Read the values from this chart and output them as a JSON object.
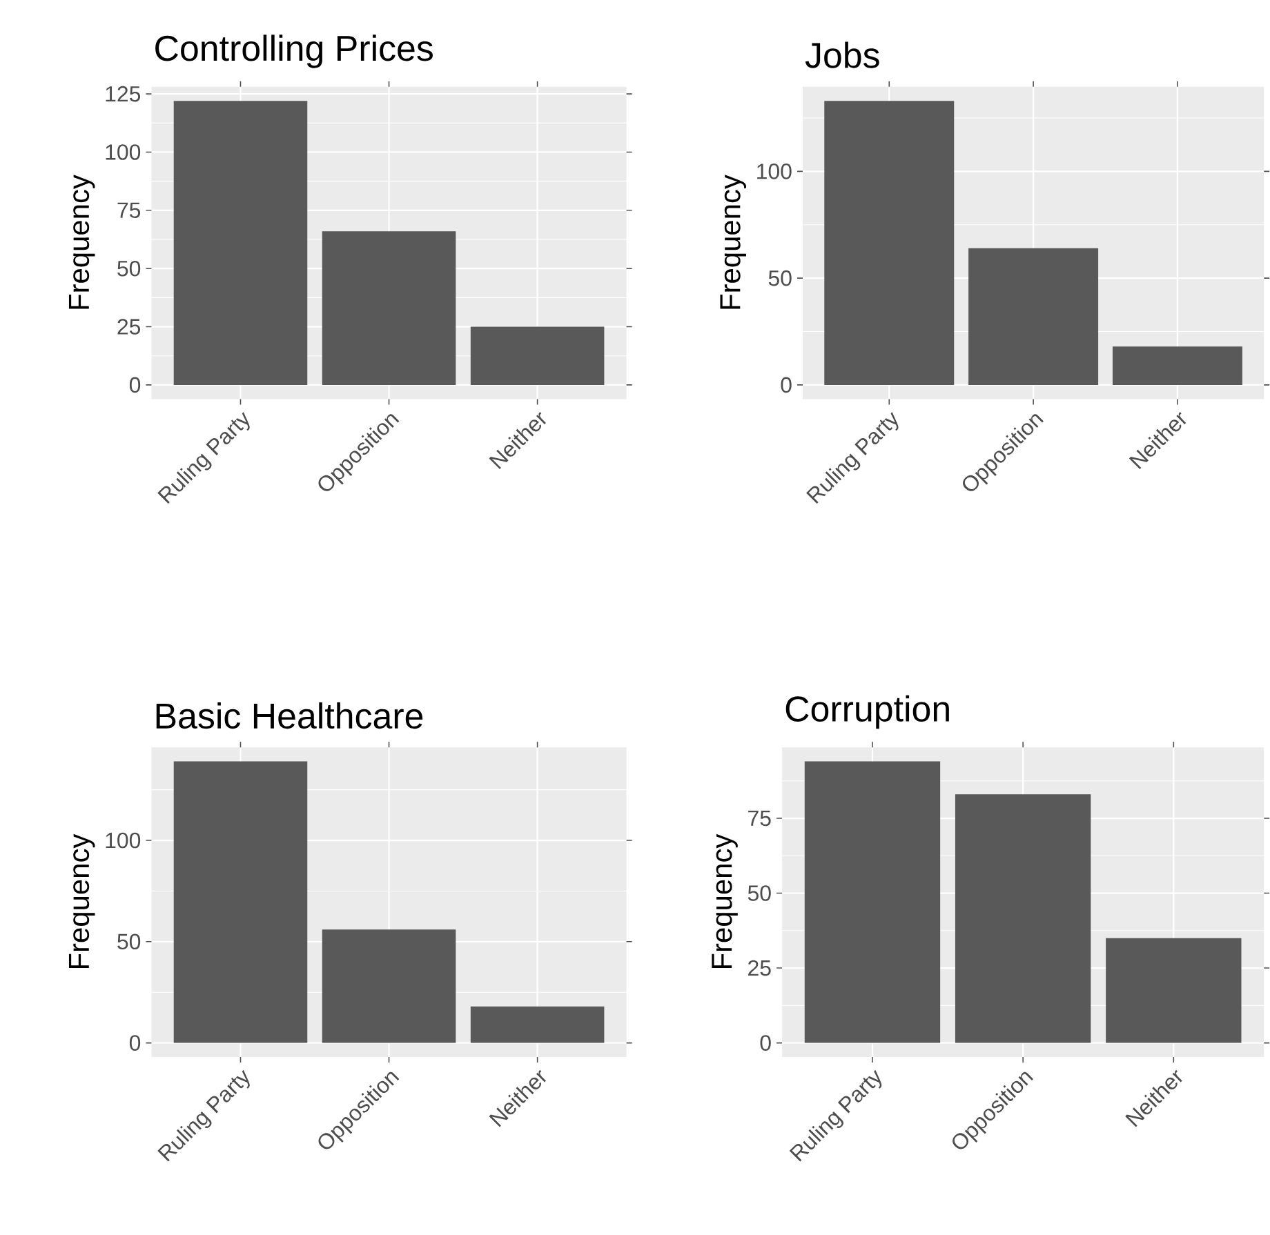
{
  "chart_data": [
    {
      "type": "bar",
      "title": "Controlling Prices",
      "ylabel": "Frequency",
      "categories": [
        "Ruling Party",
        "Opposition",
        "Neither"
      ],
      "values": [
        122,
        66,
        25
      ],
      "color": "#595959",
      "ylim": [
        -6.1,
        128.1
      ],
      "yticks": [
        0,
        25,
        50,
        75,
        100,
        125
      ],
      "grid": true
    },
    {
      "type": "bar",
      "title": "Jobs",
      "ylabel": "Frequency",
      "categories": [
        "Ruling Party",
        "Opposition",
        "Neither"
      ],
      "values": [
        133,
        64,
        18
      ],
      "color": "#595959",
      "ylim": [
        -6.65,
        139.65
      ],
      "yticks": [
        0,
        50,
        100
      ],
      "grid": true
    },
    {
      "type": "bar",
      "title": "Basic Healthcare",
      "ylabel": "Frequency",
      "categories": [
        "Ruling Party",
        "Opposition",
        "Neither"
      ],
      "values": [
        139,
        56,
        18
      ],
      "color": "#595959",
      "ylim": [
        -6.95,
        145.95
      ],
      "yticks": [
        0,
        50,
        100
      ],
      "grid": true
    },
    {
      "type": "bar",
      "title": "Corruption",
      "ylabel": "Frequency",
      "categories": [
        "Ruling Party",
        "Opposition",
        "Neither"
      ],
      "values": [
        94,
        83,
        35
      ],
      "color": "#595959",
      "ylim": [
        -4.7,
        98.7
      ],
      "yticks": [
        0,
        25,
        50,
        75
      ],
      "grid": true
    }
  ]
}
